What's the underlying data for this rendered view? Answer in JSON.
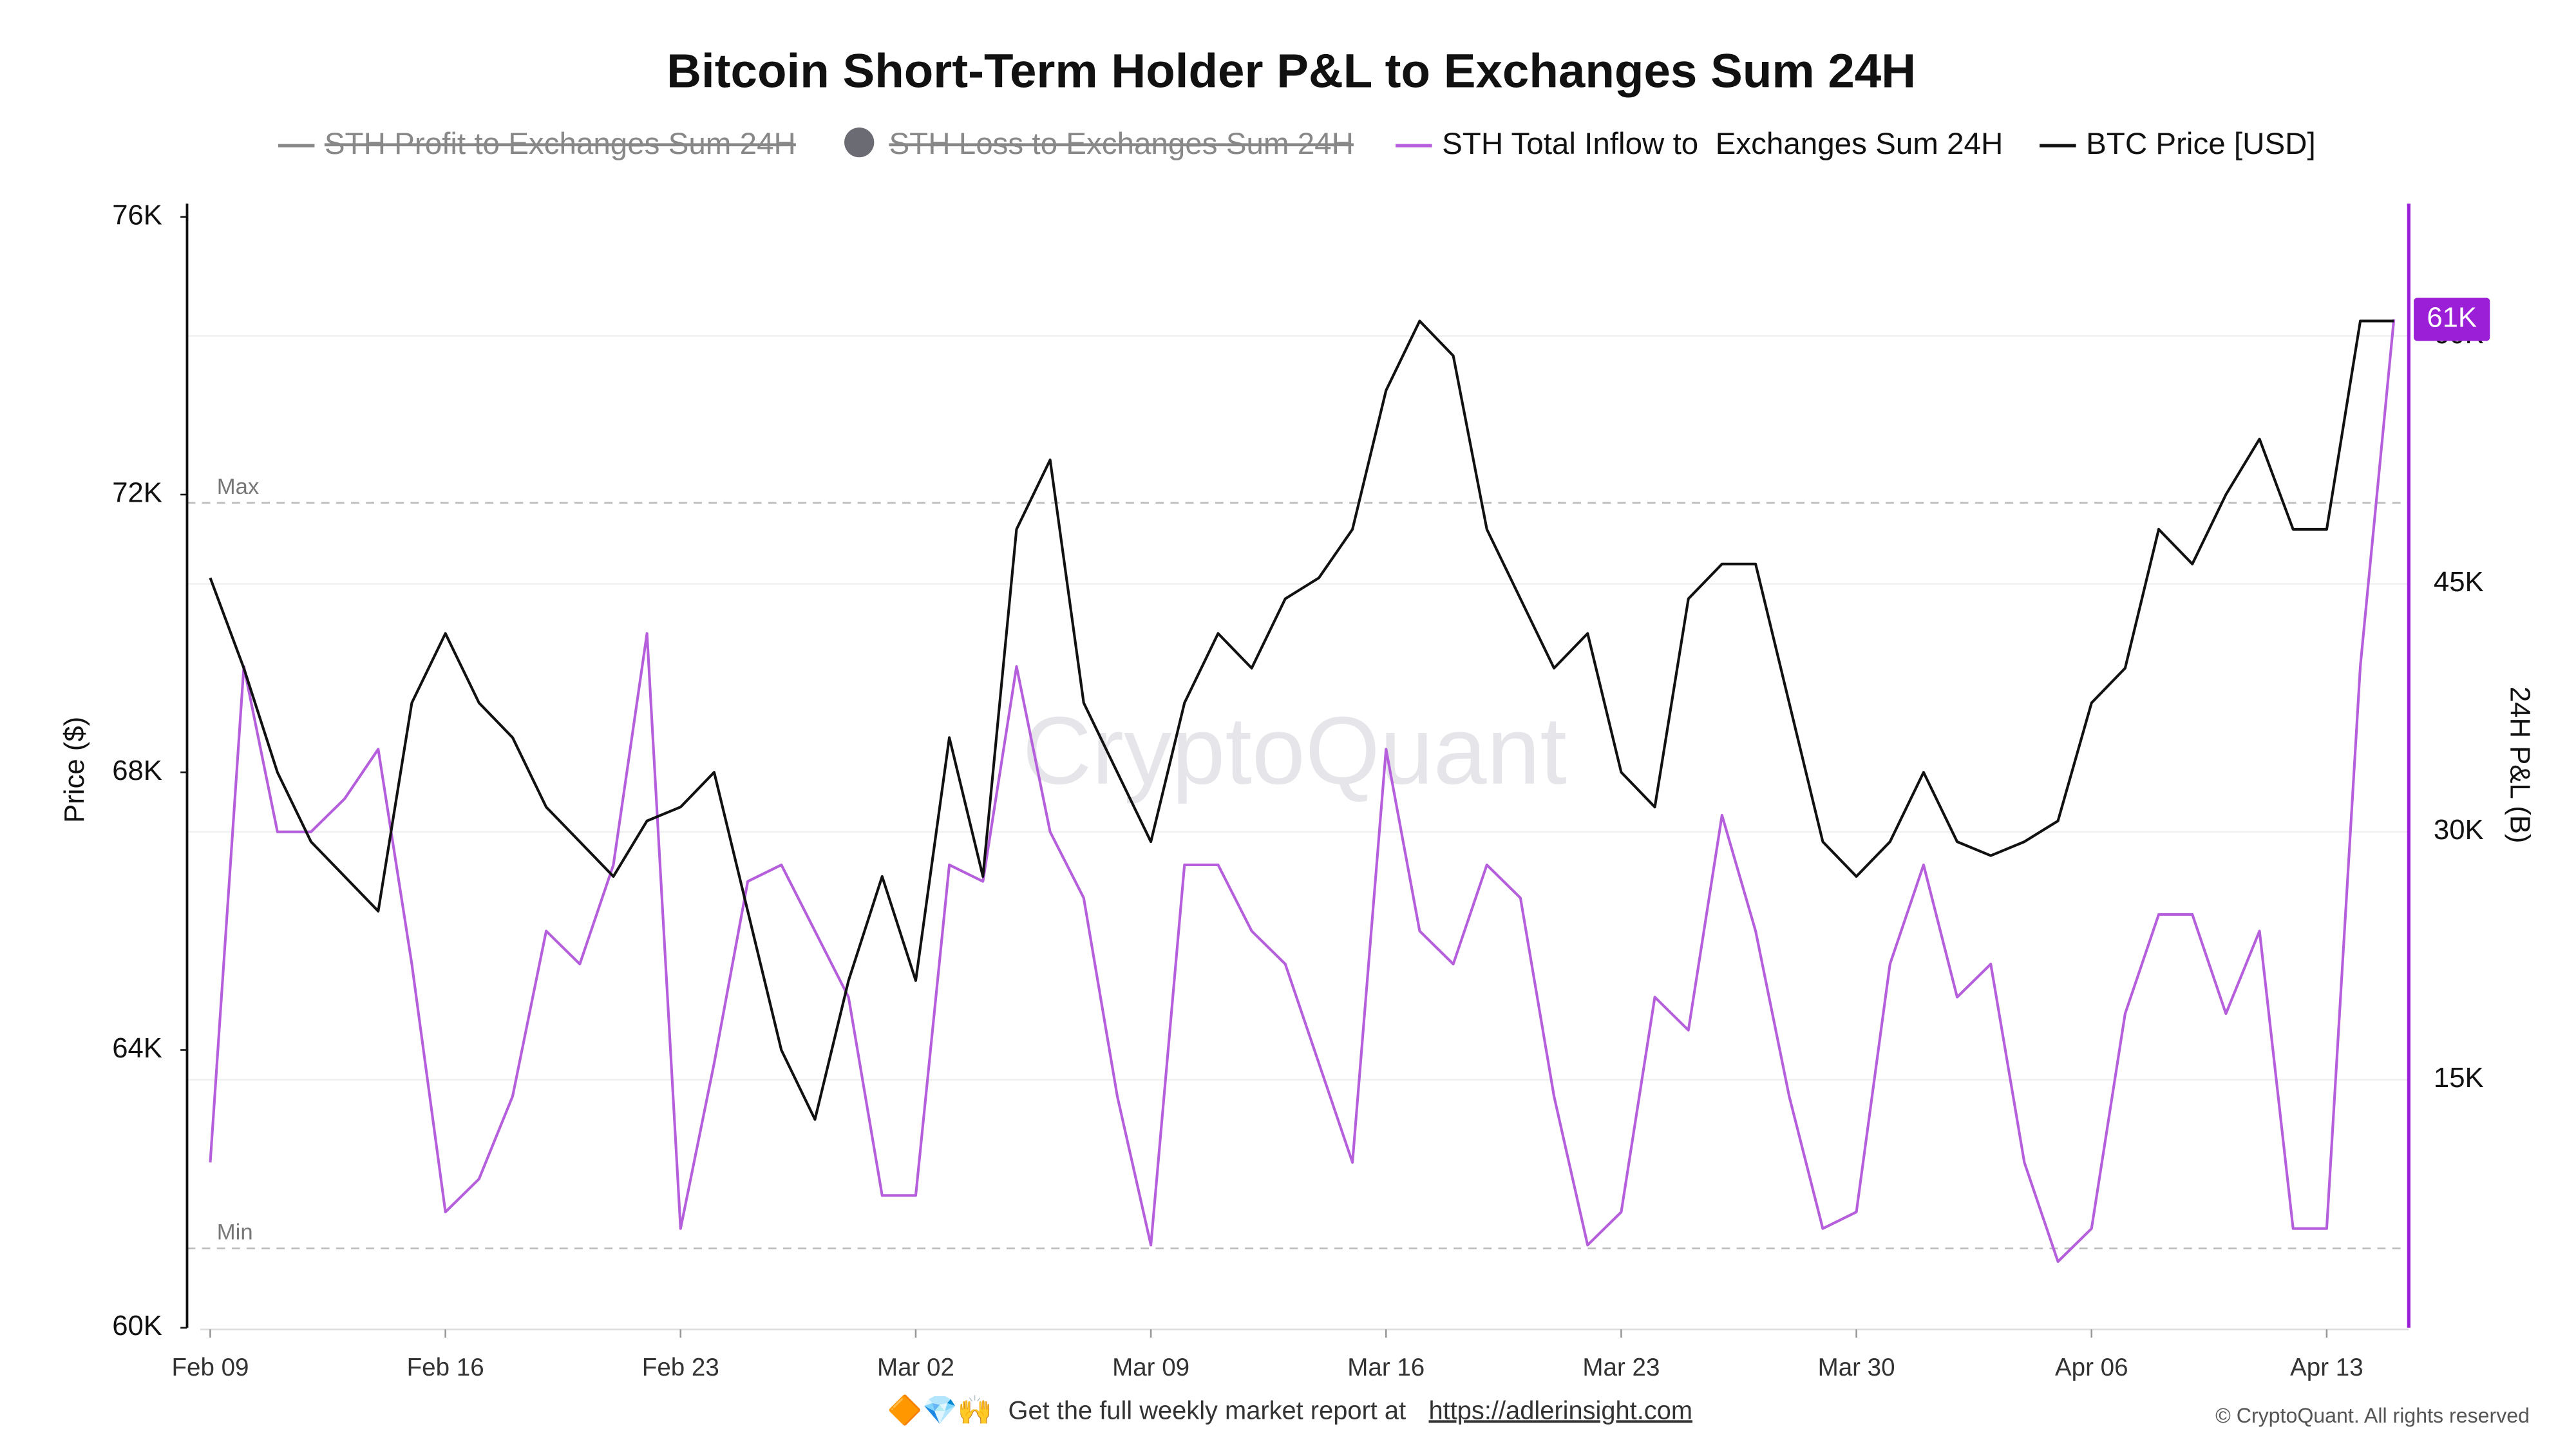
{
  "chart_data": {
    "type": "line",
    "title": "Bitcoin Short-Term Holder P&L to Exchanges Sum 24H",
    "y_label": "Price ($)",
    "y2_label": "24H P&L (B)",
    "watermark": "CryptoQuant",
    "x": [
      "Feb 09",
      "Feb 10",
      "Feb 11",
      "Feb 12",
      "Feb 13",
      "Feb 14",
      "Feb 15",
      "Feb 16",
      "Feb 17",
      "Feb 18",
      "Feb 19",
      "Feb 20",
      "Feb 21",
      "Feb 22",
      "Feb 23",
      "Feb 24",
      "Feb 25",
      "Feb 26",
      "Feb 27",
      "Feb 28",
      "Mar 01",
      "Mar 02",
      "Mar 03",
      "Mar 04",
      "Mar 05",
      "Mar 06",
      "Mar 07",
      "Mar 08",
      "Mar 09",
      "Mar 10",
      "Mar 11",
      "Mar 12",
      "Mar 13",
      "Mar 14",
      "Mar 15",
      "Mar 16",
      "Mar 17",
      "Mar 18",
      "Mar 19",
      "Mar 20",
      "Mar 21",
      "Mar 22",
      "Mar 23",
      "Mar 24",
      "Mar 25",
      "Mar 26",
      "Mar 27",
      "Mar 28",
      "Mar 29",
      "Mar 30",
      "Mar 31",
      "Apr 01",
      "Apr 02",
      "Apr 03",
      "Apr 04",
      "Apr 05",
      "Apr 06",
      "Apr 07",
      "Apr 08",
      "Apr 09",
      "Apr 10",
      "Apr 11",
      "Apr 12",
      "Apr 13",
      "Apr 14",
      "Apr 15"
    ],
    "xticks": [
      "Feb 09",
      "Feb 16",
      "Feb 23",
      "Mar 02",
      "Mar 09",
      "Mar 16",
      "Mar 23",
      "Mar 30",
      "Apr 06",
      "Apr 13"
    ],
    "ylim": [
      60000,
      76000
    ],
    "yticks": [
      {
        "value": 60000,
        "label": "60K"
      },
      {
        "value": 64000,
        "label": "64K"
      },
      {
        "value": 68000,
        "label": "68K"
      },
      {
        "value": 72000,
        "label": "72K"
      },
      {
        "value": 76000,
        "label": "76K"
      }
    ],
    "y2lim": [
      0,
      67200
    ],
    "y2ticks": [
      {
        "value": 15000,
        "label": "15K"
      },
      {
        "value": 30000,
        "label": "30K"
      },
      {
        "value": 45000,
        "label": "45K"
      },
      {
        "value": 60000,
        "label": "60K"
      }
    ],
    "grid": true,
    "reference_lines": [
      {
        "label": "Max",
        "value": 49900,
        "axis": "y2"
      },
      {
        "label": "Min",
        "value": 4800,
        "axis": "y2"
      }
    ],
    "series": [
      {
        "name": "STH Profit to Exchanges Sum 24H",
        "color": "#888888",
        "hidden": true,
        "marker": "line"
      },
      {
        "name": "STH Loss to Exchanges Sum 24H",
        "color": "#6b6b73",
        "hidden": true,
        "marker": "circle"
      },
      {
        "name": "STH Total Inflow to  Exchanges Sum 24H",
        "color": "#b55fdc",
        "axis": "y2",
        "end_label": "61K",
        "values": [
          10000,
          40000,
          30000,
          30000,
          32000,
          35000,
          22000,
          7000,
          9000,
          14000,
          24000,
          22000,
          28000,
          42000,
          6000,
          16000,
          27000,
          28000,
          24000,
          20000,
          8000,
          8000,
          28000,
          27000,
          40000,
          30000,
          26000,
          14000,
          5000,
          28000,
          28000,
          24000,
          22000,
          16000,
          10000,
          35000,
          24000,
          22000,
          28000,
          26000,
          14000,
          5000,
          7000,
          20000,
          18000,
          31000,
          24000,
          14000,
          6000,
          7000,
          22000,
          28000,
          20000,
          22000,
          10000,
          4000,
          6000,
          19000,
          25000,
          25000,
          19000,
          24000,
          6000,
          6000,
          40000,
          61000
        ]
      },
      {
        "name": "BTC Price [USD]",
        "color": "#111111",
        "axis": "y",
        "values": [
          70800,
          69500,
          68000,
          67000,
          66500,
          66000,
          69000,
          70000,
          69000,
          68500,
          67500,
          67000,
          66500,
          67300,
          67500,
          68000,
          66000,
          64000,
          63000,
          65000,
          66500,
          65000,
          68500,
          66500,
          71500,
          72500,
          69000,
          68000,
          67000,
          69000,
          70000,
          69500,
          70500,
          70800,
          71500,
          73500,
          74500,
          74000,
          71500,
          70500,
          69500,
          70000,
          68000,
          67500,
          70500,
          71000,
          71000,
          69000,
          67000,
          66500,
          67000,
          68000,
          67000,
          66800,
          67000,
          67300,
          69000,
          69500,
          71500,
          71000,
          72000,
          72800,
          71500,
          71500,
          74500,
          74500
        ]
      }
    ]
  },
  "footer": {
    "emoji": "🔶💎🙌",
    "text": "Get the full weekly market report at",
    "link": "https://adlerinsight.com",
    "copyright": "© CryptoQuant. All rights reserved"
  }
}
